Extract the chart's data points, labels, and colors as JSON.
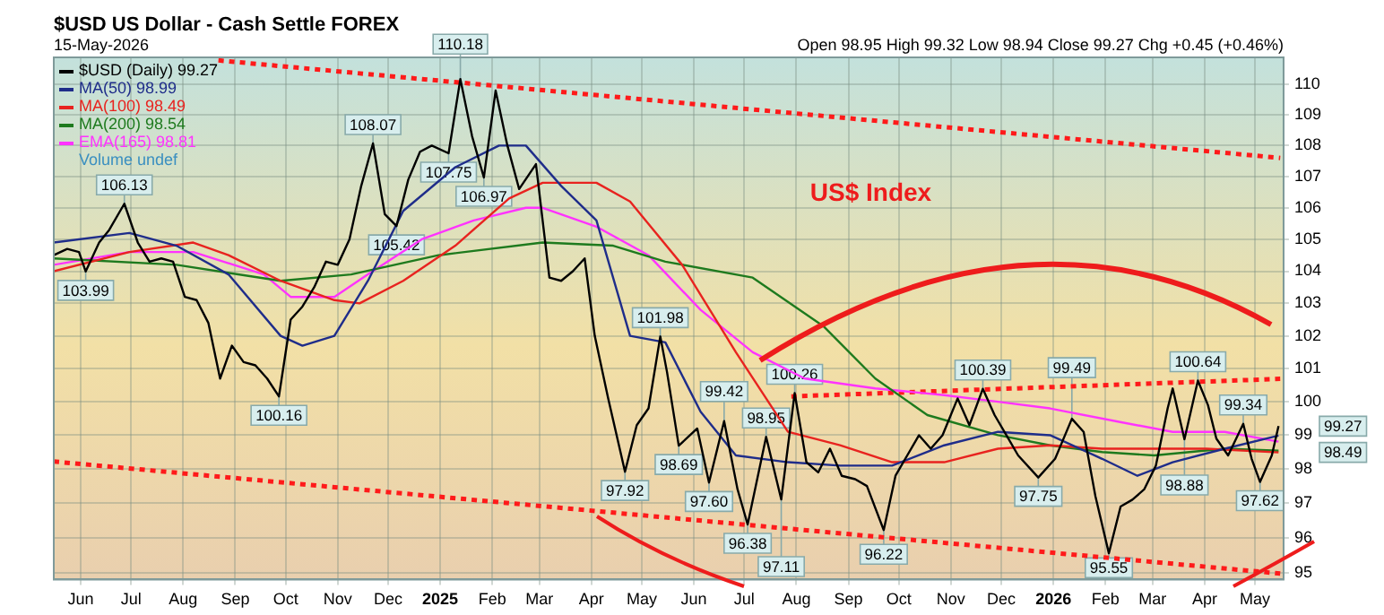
{
  "chart_data": {
    "type": "line",
    "title": "$USD US Dollar - Cash Settle FOREX",
    "subtitle": "15-May-2026",
    "annotations": [
      "Open 98.95 High 99.32 Low 98.94 Close 99.27 Chg +0.45 (+0.46%)",
      "US$ Index",
      "Volume undef",
      {
        "text": "103.99",
        "x": "2024-06-04",
        "y": 103.99
      },
      {
        "text": "106.13",
        "x": "2024-06-27",
        "y": 106.13
      },
      {
        "text": "100.16",
        "x": "2024-09-27",
        "y": 100.16
      },
      {
        "text": "108.07",
        "x": "2024-11-22",
        "y": 108.07
      },
      {
        "text": "105.42",
        "x": "2024-12-06",
        "y": 105.42
      },
      {
        "text": "107.75",
        "x": "2025-01-06",
        "y": 107.75
      },
      {
        "text": "110.18",
        "x": "2025-01-13",
        "y": 110.18
      },
      {
        "text": "106.97",
        "x": "2025-01-27",
        "y": 106.97
      },
      {
        "text": "97.92",
        "x": "2025-04-21",
        "y": 97.92
      },
      {
        "text": "101.98",
        "x": "2025-05-12",
        "y": 101.98
      },
      {
        "text": "98.69",
        "x": "2025-05-23",
        "y": 98.69
      },
      {
        "text": "97.60",
        "x": "2025-06-10",
        "y": 97.6
      },
      {
        "text": "99.42",
        "x": "2025-06-19",
        "y": 99.42
      },
      {
        "text": "96.38",
        "x": "2025-07-03",
        "y": 96.38
      },
      {
        "text": "98.95",
        "x": "2025-07-14",
        "y": 98.95
      },
      {
        "text": "97.11",
        "x": "2025-07-23",
        "y": 97.11
      },
      {
        "text": "100.26",
        "x": "2025-07-31",
        "y": 100.26
      },
      {
        "text": "96.22",
        "x": "2025-09-22",
        "y": 96.22
      },
      {
        "text": "100.39",
        "x": "2025-11-20",
        "y": 100.39
      },
      {
        "text": "97.75",
        "x": "2025-12-23",
        "y": 97.75
      },
      {
        "text": "99.49",
        "x": "2026-01-12",
        "y": 99.49
      },
      {
        "text": "95.55",
        "x": "2026-02-03",
        "y": 95.55
      },
      {
        "text": "98.88",
        "x": "2026-03-20",
        "y": 98.88
      },
      {
        "text": "100.64",
        "x": "2026-03-28",
        "y": 100.64
      },
      {
        "text": "99.34",
        "x": "2026-04-24",
        "y": 99.34
      },
      {
        "text": "97.62",
        "x": "2026-05-04",
        "y": 97.62
      },
      {
        "text": "99.27",
        "x": "2026-05-15",
        "y": 99.27
      },
      {
        "text": "98.49",
        "x": "2026-05-15",
        "y": 98.49
      }
    ],
    "xlim": [
      "2024-05-16",
      "2026-05-18"
    ],
    "xticks": [
      {
        "value": "2024-06-01",
        "label": "Jun"
      },
      {
        "value": "2024-07-01",
        "label": "Jul"
      },
      {
        "value": "2024-08-01",
        "label": "Aug"
      },
      {
        "value": "2024-09-01",
        "label": "Sep"
      },
      {
        "value": "2024-10-01",
        "label": "Oct"
      },
      {
        "value": "2024-11-01",
        "label": "Nov"
      },
      {
        "value": "2024-12-01",
        "label": "Dec"
      },
      {
        "value": "2025-01-01",
        "label": "2025"
      },
      {
        "value": "2025-02-01",
        "label": "Feb"
      },
      {
        "value": "2025-03-01",
        "label": "Mar"
      },
      {
        "value": "2025-04-01",
        "label": "Apr"
      },
      {
        "value": "2025-05-01",
        "label": "May"
      },
      {
        "value": "2025-06-01",
        "label": "Jun"
      },
      {
        "value": "2025-07-01",
        "label": "Jul"
      },
      {
        "value": "2025-08-01",
        "label": "Aug"
      },
      {
        "value": "2025-09-01",
        "label": "Sep"
      },
      {
        "value": "2025-10-01",
        "label": "Oct"
      },
      {
        "value": "2025-11-01",
        "label": "Nov"
      },
      {
        "value": "2025-12-01",
        "label": "Dec"
      },
      {
        "value": "2026-01-01",
        "label": "2026"
      },
      {
        "value": "2026-02-01",
        "label": "Feb"
      },
      {
        "value": "2026-03-01",
        "label": "Mar"
      },
      {
        "value": "2026-04-01",
        "label": "Apr"
      },
      {
        "value": "2026-05-01",
        "label": "May"
      }
    ],
    "ylim": [
      94.8,
      110.9
    ],
    "yticks": [
      95,
      96,
      97,
      98,
      99,
      100,
      101,
      102,
      103,
      104,
      105,
      106,
      107,
      108,
      109,
      110
    ],
    "log": true,
    "grid": true,
    "legend": "top left",
    "series": [
      {
        "name": "$USD (Daily) 99.27",
        "color": "#000000",
        "x": [
          "2024-05-16",
          "2024-05-24",
          "2024-05-31",
          "2024-06-04",
          "2024-06-12",
          "2024-06-18",
          "2024-06-27",
          "2024-07-05",
          "2024-07-12",
          "2024-07-19",
          "2024-07-26",
          "2024-08-02",
          "2024-08-09",
          "2024-08-16",
          "2024-08-23",
          "2024-08-30",
          "2024-09-06",
          "2024-09-13",
          "2024-09-20",
          "2024-09-27",
          "2024-10-04",
          "2024-10-11",
          "2024-10-18",
          "2024-10-25",
          "2024-11-01",
          "2024-11-08",
          "2024-11-15",
          "2024-11-22",
          "2024-11-29",
          "2024-12-06",
          "2024-12-13",
          "2024-12-20",
          "2024-12-27",
          "2025-01-06",
          "2025-01-13",
          "2025-01-20",
          "2025-01-27",
          "2025-02-03",
          "2025-02-10",
          "2025-02-17",
          "2025-02-27",
          "2025-03-07",
          "2025-03-14",
          "2025-03-21",
          "2025-03-28",
          "2025-04-03",
          "2025-04-11",
          "2025-04-21",
          "2025-04-28",
          "2025-05-05",
          "2025-05-12",
          "2025-05-16",
          "2025-05-23",
          "2025-06-03",
          "2025-06-10",
          "2025-06-19",
          "2025-06-27",
          "2025-07-03",
          "2025-07-14",
          "2025-07-23",
          "2025-07-31",
          "2025-08-07",
          "2025-08-14",
          "2025-08-21",
          "2025-08-28",
          "2025-09-05",
          "2025-09-12",
          "2025-09-22",
          "2025-09-29",
          "2025-10-06",
          "2025-10-13",
          "2025-10-20",
          "2025-10-27",
          "2025-11-05",
          "2025-11-12",
          "2025-11-20",
          "2025-11-27",
          "2025-12-04",
          "2025-12-11",
          "2025-12-23",
          "2026-01-02",
          "2026-01-12",
          "2026-01-19",
          "2026-01-26",
          "2026-02-03",
          "2026-02-10",
          "2026-02-17",
          "2026-02-24",
          "2026-03-03",
          "2026-03-10",
          "2026-03-13",
          "2026-03-20",
          "2026-03-28",
          "2026-04-03",
          "2026-04-08",
          "2026-04-15",
          "2026-04-24",
          "2026-04-29",
          "2026-05-04",
          "2026-05-11",
          "2026-05-15"
        ],
        "values": [
          104.5,
          104.7,
          104.6,
          103.99,
          104.9,
          105.3,
          106.13,
          104.9,
          104.3,
          104.4,
          104.3,
          103.2,
          103.1,
          102.4,
          100.7,
          101.7,
          101.2,
          101.1,
          100.7,
          100.16,
          102.5,
          102.9,
          103.5,
          104.3,
          104.2,
          105.0,
          106.7,
          108.07,
          105.8,
          105.42,
          106.9,
          107.8,
          108.0,
          107.75,
          110.18,
          108.3,
          106.97,
          109.8,
          108.0,
          106.6,
          107.4,
          103.8,
          103.7,
          104.0,
          104.4,
          102.0,
          100.1,
          97.92,
          99.3,
          99.8,
          101.98,
          100.9,
          98.69,
          99.2,
          97.6,
          99.42,
          97.4,
          96.38,
          98.95,
          97.11,
          100.26,
          98.2,
          97.9,
          98.6,
          97.8,
          97.7,
          97.5,
          96.22,
          97.8,
          98.4,
          99.0,
          98.6,
          99.0,
          100.1,
          99.3,
          100.39,
          99.6,
          99.0,
          98.4,
          97.75,
          98.3,
          99.49,
          99.1,
          97.2,
          95.55,
          96.9,
          97.1,
          97.4,
          98.1,
          99.8,
          100.4,
          98.88,
          100.64,
          99.9,
          98.9,
          98.4,
          99.34,
          98.3,
          97.62,
          98.4,
          99.27
        ]
      },
      {
        "name": "MA(50) 98.99",
        "color": "#1f2d8a",
        "x": [
          "2024-05-16",
          "2024-06-30",
          "2024-07-28",
          "2024-08-28",
          "2024-09-28",
          "2024-10-11",
          "2024-10-30",
          "2024-11-19",
          "2024-12-10",
          "2025-01-10",
          "2025-02-05",
          "2025-02-21",
          "2025-03-14",
          "2025-04-04",
          "2025-04-24",
          "2025-05-15",
          "2025-06-05",
          "2025-06-26",
          "2025-07-27",
          "2025-08-27",
          "2025-09-27",
          "2025-10-28",
          "2025-11-29",
          "2025-12-30",
          "2026-01-30",
          "2026-02-20",
          "2026-03-13",
          "2026-04-13",
          "2026-05-15"
        ],
        "values": [
          104.9,
          105.2,
          104.8,
          103.9,
          102.0,
          101.7,
          102.0,
          103.7,
          105.9,
          107.3,
          108.0,
          108.0,
          106.7,
          105.6,
          102.0,
          101.8,
          99.7,
          98.4,
          98.2,
          98.1,
          98.1,
          98.7,
          99.1,
          99.0,
          98.3,
          97.8,
          98.2,
          98.6,
          98.99
        ]
      },
      {
        "name": "MA(100) 98.49",
        "color": "#e8231f",
        "x": [
          "2024-05-16",
          "2024-06-30",
          "2024-08-07",
          "2024-08-28",
          "2024-09-28",
          "2024-10-30",
          "2024-11-14",
          "2024-12-10",
          "2025-01-10",
          "2025-02-11",
          "2025-03-03",
          "2025-04-04",
          "2025-04-24",
          "2025-05-25",
          "2025-06-26",
          "2025-07-27",
          "2025-08-27",
          "2025-09-27",
          "2025-10-28",
          "2025-11-29",
          "2025-12-30",
          "2026-01-30",
          "2026-03-02",
          "2026-04-02",
          "2026-05-15"
        ],
        "values": [
          104.0,
          104.6,
          104.9,
          104.5,
          103.7,
          103.1,
          103.0,
          103.7,
          104.8,
          106.3,
          106.8,
          106.8,
          106.2,
          104.2,
          101.5,
          99.1,
          98.7,
          98.2,
          98.2,
          98.6,
          98.7,
          98.6,
          98.6,
          98.6,
          98.49
        ]
      },
      {
        "name": "MA(200) 98.54",
        "color": "#1e7a1e",
        "x": [
          "2024-05-16",
          "2024-07-28",
          "2024-09-28",
          "2024-11-09",
          "2024-12-31",
          "2025-03-03",
          "2025-04-14",
          "2025-05-15",
          "2025-07-06",
          "2025-08-17",
          "2025-09-17",
          "2025-10-18",
          "2025-11-29",
          "2025-12-30",
          "2026-01-30",
          "2026-03-02",
          "2026-04-13",
          "2026-05-15"
        ],
        "values": [
          104.4,
          104.2,
          103.7,
          103.9,
          104.5,
          104.9,
          104.8,
          104.3,
          103.8,
          102.3,
          100.7,
          99.6,
          99.0,
          98.7,
          98.5,
          98.4,
          98.6,
          98.54
        ]
      },
      {
        "name": "EMA(165) 98.81",
        "color": "#ff33ff",
        "x": [
          "2024-05-16",
          "2024-06-30",
          "2024-08-07",
          "2024-09-18",
          "2024-10-04",
          "2024-10-30",
          "2024-11-19",
          "2024-12-21",
          "2025-01-21",
          "2025-02-21",
          "2025-03-03",
          "2025-04-04",
          "2025-05-05",
          "2025-06-05",
          "2025-07-06",
          "2025-08-06",
          "2025-09-17",
          "2025-10-28",
          "2025-11-29",
          "2025-12-30",
          "2026-02-09",
          "2026-03-13",
          "2026-04-13",
          "2026-05-15"
        ],
        "values": [
          104.2,
          104.6,
          104.6,
          103.9,
          103.2,
          103.2,
          103.9,
          105.0,
          105.6,
          106.0,
          106.0,
          105.4,
          104.5,
          102.8,
          101.5,
          100.7,
          100.4,
          100.2,
          100.0,
          99.8,
          99.4,
          99.1,
          99.1,
          98.81
        ]
      },
      {
        "color": "#ff1a1a",
        "line_style": "dotted",
        "x": [
          "2024-08-22",
          "2026-05-16"
        ],
        "values": [
          110.8,
          107.6
        ]
      },
      {
        "color": "#ff1a1a",
        "line_style": "dotted",
        "x": [
          "2025-07-29",
          "2026-05-16"
        ],
        "values": [
          100.16,
          100.69
        ]
      },
      {
        "color": "#ff1a1a",
        "line_style": "dotted",
        "x": [
          "2024-05-16",
          "2026-05-16"
        ],
        "values": [
          98.22,
          94.97
        ]
      }
    ]
  }
}
